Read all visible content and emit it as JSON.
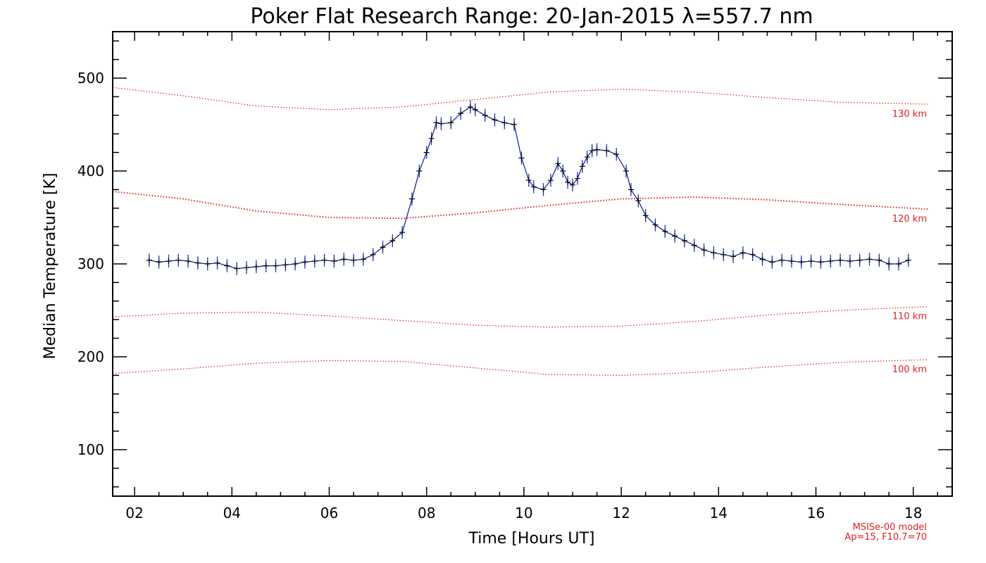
{
  "chart_data": {
    "type": "line",
    "title": "Poker Flat Research Range: 20-Jan-2015 λ=557.7 nm",
    "xlabel": "Time [Hours UT]",
    "ylabel": "Median Temperature [K]",
    "xlim": [
      1.55,
      18.8
    ],
    "ylim": [
      50,
      550
    ],
    "x_ticks": [
      2,
      4,
      6,
      8,
      10,
      12,
      14,
      16,
      18
    ],
    "x_tick_labels": [
      "02",
      "04",
      "06",
      "08",
      "10",
      "12",
      "14",
      "16",
      "18"
    ],
    "y_ticks": [
      100,
      200,
      300,
      400,
      500
    ],
    "y_tick_labels": [
      "100",
      "200",
      "300",
      "400",
      "500"
    ],
    "grid": false,
    "series": [
      {
        "color": "#0a1a8c",
        "marker": "+",
        "error_color": "#1e32c8",
        "error_half_width": 7,
        "x": [
          2.3,
          2.5,
          2.7,
          2.9,
          3.1,
          3.3,
          3.5,
          3.7,
          3.9,
          4.1,
          4.3,
          4.5,
          4.7,
          4.9,
          5.1,
          5.3,
          5.5,
          5.7,
          5.9,
          6.1,
          6.3,
          6.5,
          6.7,
          6.9,
          7.1,
          7.3,
          7.5,
          7.7,
          7.85,
          8.0,
          8.1,
          8.2,
          8.3,
          8.5,
          8.7,
          8.9,
          9.0,
          9.2,
          9.4,
          9.6,
          9.8,
          9.95,
          10.1,
          10.2,
          10.4,
          10.55,
          10.7,
          10.8,
          10.9,
          11.0,
          11.1,
          11.2,
          11.3,
          11.4,
          11.5,
          11.7,
          11.9,
          12.1,
          12.2,
          12.35,
          12.5,
          12.7,
          12.9,
          13.1,
          13.3,
          13.5,
          13.7,
          13.9,
          14.1,
          14.3,
          14.5,
          14.7,
          14.9,
          15.1,
          15.3,
          15.5,
          15.7,
          15.9,
          16.1,
          16.3,
          16.5,
          16.7,
          16.9,
          17.1,
          17.3,
          17.5,
          17.7,
          17.9
        ],
        "y": [
          304,
          302,
          303,
          304,
          303,
          301,
          300,
          301,
          298,
          295,
          296,
          297,
          298,
          298,
          299,
          300,
          302,
          303,
          304,
          303,
          305,
          304,
          305,
          310,
          318,
          325,
          334,
          370,
          400,
          420,
          435,
          452,
          451,
          452,
          462,
          469,
          466,
          460,
          455,
          452,
          450,
          414,
          390,
          383,
          380,
          390,
          408,
          400,
          388,
          385,
          392,
          405,
          415,
          422,
          423,
          422,
          418,
          400,
          380,
          368,
          352,
          342,
          335,
          330,
          325,
          320,
          315,
          312,
          310,
          308,
          312,
          310,
          305,
          302,
          304,
          303,
          302,
          303,
          302,
          303,
          304,
          303,
          304,
          305,
          304,
          300,
          300,
          304
        ]
      }
    ],
    "model_curves": [
      {
        "label": "130 km",
        "x": [
          1.55,
          3.0,
          4.5,
          6.0,
          7.5,
          9.0,
          10.5,
          12.0,
          13.5,
          15.0,
          16.5,
          18.3
        ],
        "y": [
          490,
          481,
          470,
          466,
          469,
          477,
          485,
          488,
          485,
          479,
          474,
          472
        ]
      },
      {
        "label": "120 km",
        "x": [
          1.55,
          3.0,
          4.5,
          6.0,
          7.5,
          9.0,
          10.5,
          12.0,
          13.5,
          15.0,
          16.5,
          18.3
        ],
        "y": [
          378,
          370,
          357,
          350,
          349,
          355,
          363,
          370,
          372,
          369,
          364,
          359
        ]
      },
      {
        "label": "110 km",
        "x": [
          1.55,
          3.0,
          4.5,
          6.0,
          7.5,
          9.0,
          10.5,
          12.0,
          13.5,
          15.0,
          16.5,
          18.3
        ],
        "y": [
          243,
          247,
          248,
          244,
          239,
          234,
          232,
          233,
          238,
          245,
          250,
          254
        ]
      },
      {
        "label": "100 km",
        "x": [
          1.55,
          3.0,
          4.5,
          6.0,
          7.5,
          9.0,
          10.5,
          12.0,
          13.5,
          15.0,
          16.5,
          18.3
        ],
        "y": [
          182,
          187,
          193,
          196,
          195,
          188,
          181,
          180,
          183,
          189,
          194,
          197
        ]
      }
    ],
    "model_note_line1": "MSISe-00 model",
    "model_note_line2": "Ap=15, F10.7=70",
    "model_color": "#e01e1e"
  }
}
